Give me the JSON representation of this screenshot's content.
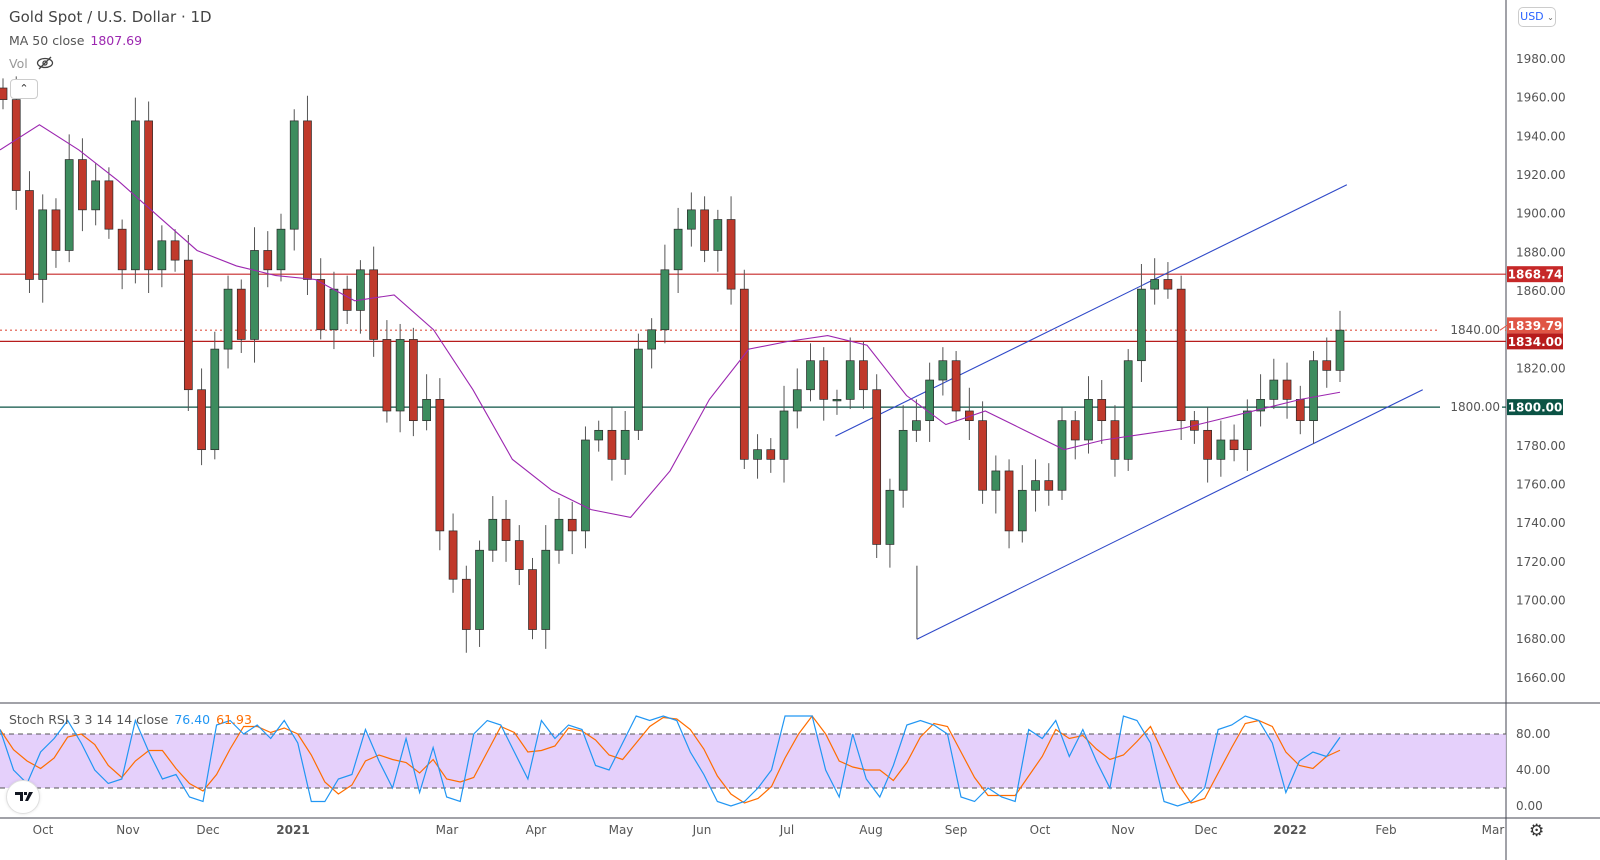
{
  "header": {
    "title": "Gold Spot / U.S. Dollar · 1D",
    "ma_label": "MA 50 close",
    "ma_value": "1807.69",
    "vol_label": "Vol",
    "vol_icon": "eye-hidden-icon",
    "collapse_icon": "chevron-up-icon"
  },
  "currency_selector": "USD",
  "stoch": {
    "label": "Stoch RSI 3 3 14 14 close",
    "k_value": "76.40",
    "d_value": "61.93"
  },
  "colors": {
    "up": "#3d8c5e",
    "down": "#c0392b",
    "ma": "#9c27b0",
    "k": "#2196f3",
    "d": "#ff6d00",
    "band": "#e1c8fa",
    "trendline": "#2f49c8",
    "resistance": "#c62828",
    "support": "#0b5345"
  },
  "chart_data": [
    {
      "type": "candlestick",
      "title": "Gold Spot / U.S. Dollar · 1D",
      "y_ticks": [
        "1980.00",
        "1960.00",
        "1940.00",
        "1920.00",
        "1900.00",
        "1880.00",
        "1860.00",
        "1840.00",
        "1820.00",
        "1800.00",
        "1780.00",
        "1760.00",
        "1740.00",
        "1720.00",
        "1700.00",
        "1680.00",
        "1660.00"
      ],
      "ylim": [
        1651,
        1996
      ],
      "x_ticks": [
        "Oct",
        "Nov",
        "Dec",
        "2021",
        "Mar",
        "Apr",
        "May",
        "Jun",
        "Jul",
        "Aug",
        "Sep",
        "Oct",
        "Nov",
        "Dec",
        "2022",
        "Feb",
        "Mar"
      ],
      "closes": [
        1959,
        1912,
        1866,
        1902,
        1881,
        1928,
        1902,
        1917,
        1892,
        1871,
        1948,
        1871,
        1886,
        1876,
        1809,
        1778,
        1830,
        1861,
        1835,
        1881,
        1871,
        1892,
        1948,
        1866,
        1840,
        1861,
        1850,
        1871,
        1835,
        1798,
        1835,
        1793,
        1804,
        1736,
        1711,
        1685,
        1726,
        1742,
        1731,
        1716,
        1685,
        1726,
        1742,
        1736,
        1783,
        1788,
        1773,
        1788,
        1830,
        1840,
        1871,
        1892,
        1902,
        1881,
        1897,
        1861,
        1773,
        1778,
        1773,
        1798,
        1809,
        1824,
        1804,
        1804,
        1824,
        1809,
        1729,
        1757,
        1788,
        1793,
        1814,
        1824,
        1798,
        1793,
        1757,
        1767,
        1736,
        1757,
        1762,
        1757,
        1793,
        1783,
        1804,
        1793,
        1773,
        1824,
        1861,
        1866,
        1861,
        1793,
        1788,
        1773,
        1783,
        1778,
        1798,
        1804,
        1814,
        1804,
        1793,
        1824,
        1819,
        1839.79
      ],
      "ma50": [
        1933,
        1946,
        1933,
        1917,
        1899,
        1881,
        1873,
        1868,
        1866,
        1855,
        1858,
        1840,
        1809,
        1773,
        1757,
        1747,
        1743,
        1767,
        1804,
        1830,
        1834,
        1837,
        1832,
        1806,
        1791,
        1798,
        1788,
        1778,
        1783,
        1786,
        1789,
        1794,
        1799,
        1804,
        1807.69
      ],
      "price_labels": [
        {
          "value": "1868.74",
          "color": "#c62828",
          "style": "solid"
        },
        {
          "value": "1839.79",
          "color": "#e05545",
          "style": "dotted"
        },
        {
          "value": "1834.00",
          "color": "#b71c1c",
          "style": "solid"
        },
        {
          "value": "1800.00",
          "color": "#0b5345",
          "style": "solid"
        }
      ],
      "trendlines": [
        {
          "from": [
            "2021-07-10",
            1785
          ],
          "to": [
            "2022-01-08",
            1915
          ]
        },
        {
          "from": [
            "2021-08-08",
            1680
          ],
          "to": [
            "2022-02-04",
            1809
          ]
        },
        {
          "from": [
            "2021-08-08",
            1718
          ],
          "to": [
            "2021-08-08",
            1680
          ]
        }
      ]
    },
    {
      "type": "line",
      "title": "Stoch RSI 3 3 14 14 close",
      "y_ticks": [
        "80.00",
        "40.00",
        "0.00"
      ],
      "ylim": [
        -5,
        103
      ],
      "band": [
        20,
        80
      ],
      "series": [
        {
          "name": "K",
          "values": [
            85,
            40,
            25,
            60,
            75,
            95,
            70,
            40,
            25,
            30,
            95,
            60,
            30,
            35,
            10,
            5,
            90,
            95,
            80,
            90,
            75,
            95,
            70,
            5,
            5,
            30,
            35,
            85,
            50,
            20,
            75,
            15,
            65,
            10,
            5,
            80,
            95,
            90,
            60,
            30,
            95,
            75,
            90,
            85,
            45,
            40,
            70,
            100,
            95,
            100,
            95,
            60,
            35,
            5,
            0,
            5,
            20,
            40,
            100,
            100,
            100,
            40,
            10,
            80,
            30,
            10,
            45,
            90,
            95,
            90,
            80,
            10,
            5,
            20,
            10,
            5,
            85,
            75,
            95,
            55,
            85,
            50,
            20,
            100,
            95,
            70,
            5,
            0,
            5,
            20,
            85,
            90,
            100,
            95,
            70,
            15,
            50,
            60,
            55,
            76.4
          ]
        }
      ]
    }
  ]
}
